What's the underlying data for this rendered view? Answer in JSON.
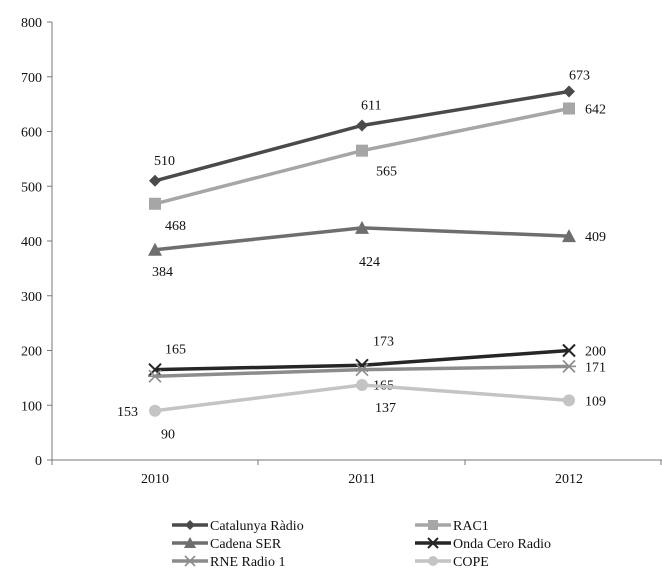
{
  "chart_data": {
    "type": "line",
    "x": [
      "2010",
      "2011",
      "2012"
    ],
    "ylim": [
      0,
      800
    ],
    "yticks": [
      0,
      100,
      200,
      300,
      400,
      500,
      600,
      700,
      800
    ],
    "grid": false,
    "legend_position": "bottom",
    "series": [
      {
        "name": "Catalunya Ràdio",
        "values": [
          510,
          611,
          673
        ],
        "color": "#4a4a4a",
        "marker": "diamond"
      },
      {
        "name": "RAC1",
        "values": [
          468,
          565,
          642
        ],
        "color": "#a6a6a6",
        "marker": "square"
      },
      {
        "name": "Cadena SER",
        "values": [
          384,
          424,
          409
        ],
        "color": "#6e6e6e",
        "marker": "triangle"
      },
      {
        "name": "Onda Cero Radio",
        "values": [
          165,
          173,
          200
        ],
        "color": "#262626",
        "marker": "x"
      },
      {
        "name": "RNE Radio 1",
        "values": [
          153,
          165,
          171
        ],
        "color": "#8c8c8c",
        "marker": "asterisk"
      },
      {
        "name": "COPE",
        "values": [
          90,
          137,
          109
        ],
        "color": "#c4c4c4",
        "marker": "circle"
      }
    ]
  }
}
